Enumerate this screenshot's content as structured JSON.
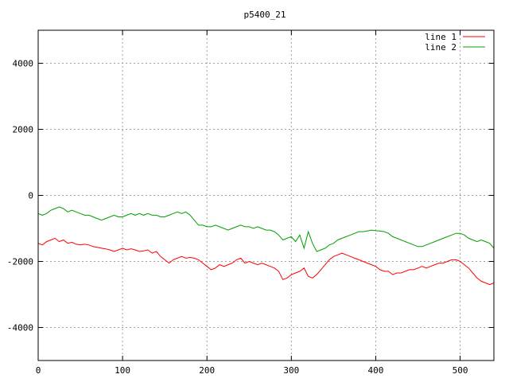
{
  "chart_data": {
    "type": "line",
    "title": "p5400_21",
    "xlabel": "",
    "ylabel": "",
    "xlim": [
      0,
      540
    ],
    "ylim": [
      -5000,
      5000
    ],
    "x_ticks": [
      0,
      100,
      200,
      300,
      400,
      500
    ],
    "y_ticks": [
      -4000,
      -2000,
      0,
      2000,
      4000
    ],
    "grid": true,
    "legend_position": "top-right",
    "series": [
      {
        "name": "line 1",
        "color": "#ff0000",
        "points": [
          [
            0,
            -1450
          ],
          [
            5,
            -1500
          ],
          [
            10,
            -1400
          ],
          [
            15,
            -1350
          ],
          [
            20,
            -1300
          ],
          [
            25,
            -1400
          ],
          [
            30,
            -1350
          ],
          [
            35,
            -1450
          ],
          [
            40,
            -1420
          ],
          [
            45,
            -1480
          ],
          [
            50,
            -1500
          ],
          [
            55,
            -1480
          ],
          [
            60,
            -1500
          ],
          [
            65,
            -1550
          ],
          [
            70,
            -1570
          ],
          [
            75,
            -1600
          ],
          [
            80,
            -1620
          ],
          [
            85,
            -1650
          ],
          [
            90,
            -1700
          ],
          [
            95,
            -1650
          ],
          [
            100,
            -1600
          ],
          [
            105,
            -1650
          ],
          [
            110,
            -1620
          ],
          [
            115,
            -1650
          ],
          [
            120,
            -1700
          ],
          [
            125,
            -1680
          ],
          [
            130,
            -1650
          ],
          [
            135,
            -1750
          ],
          [
            140,
            -1700
          ],
          [
            145,
            -1850
          ],
          [
            150,
            -1950
          ],
          [
            155,
            -2050
          ],
          [
            160,
            -1950
          ],
          [
            165,
            -1900
          ],
          [
            170,
            -1850
          ],
          [
            175,
            -1900
          ],
          [
            180,
            -1880
          ],
          [
            185,
            -1900
          ],
          [
            190,
            -1950
          ],
          [
            195,
            -2050
          ],
          [
            200,
            -2150
          ],
          [
            205,
            -2250
          ],
          [
            210,
            -2200
          ],
          [
            215,
            -2100
          ],
          [
            220,
            -2150
          ],
          [
            225,
            -2100
          ],
          [
            230,
            -2050
          ],
          [
            235,
            -1950
          ],
          [
            240,
            -1900
          ],
          [
            245,
            -2050
          ],
          [
            250,
            -2000
          ],
          [
            255,
            -2050
          ],
          [
            260,
            -2100
          ],
          [
            265,
            -2050
          ],
          [
            270,
            -2100
          ],
          [
            275,
            -2150
          ],
          [
            280,
            -2200
          ],
          [
            285,
            -2300
          ],
          [
            290,
            -2550
          ],
          [
            295,
            -2500
          ],
          [
            300,
            -2400
          ],
          [
            305,
            -2350
          ],
          [
            310,
            -2300
          ],
          [
            315,
            -2200
          ],
          [
            320,
            -2450
          ],
          [
            325,
            -2500
          ],
          [
            330,
            -2400
          ],
          [
            335,
            -2250
          ],
          [
            340,
            -2100
          ],
          [
            345,
            -1950
          ],
          [
            350,
            -1850
          ],
          [
            355,
            -1800
          ],
          [
            360,
            -1750
          ],
          [
            365,
            -1800
          ],
          [
            370,
            -1850
          ],
          [
            375,
            -1900
          ],
          [
            380,
            -1950
          ],
          [
            385,
            -2000
          ],
          [
            390,
            -2050
          ],
          [
            395,
            -2100
          ],
          [
            400,
            -2150
          ],
          [
            405,
            -2250
          ],
          [
            410,
            -2300
          ],
          [
            415,
            -2300
          ],
          [
            420,
            -2400
          ],
          [
            425,
            -2350
          ],
          [
            430,
            -2350
          ],
          [
            435,
            -2300
          ],
          [
            440,
            -2250
          ],
          [
            445,
            -2250
          ],
          [
            450,
            -2200
          ],
          [
            455,
            -2150
          ],
          [
            460,
            -2200
          ],
          [
            465,
            -2150
          ],
          [
            470,
            -2100
          ],
          [
            475,
            -2050
          ],
          [
            480,
            -2050
          ],
          [
            485,
            -2000
          ],
          [
            490,
            -1950
          ],
          [
            495,
            -1950
          ],
          [
            500,
            -2000
          ],
          [
            505,
            -2100
          ],
          [
            510,
            -2200
          ],
          [
            515,
            -2350
          ],
          [
            520,
            -2500
          ],
          [
            525,
            -2600
          ],
          [
            530,
            -2650
          ],
          [
            535,
            -2700
          ],
          [
            540,
            -2650
          ]
        ]
      },
      {
        "name": "line 2",
        "color": "#00a000",
        "points": [
          [
            0,
            -550
          ],
          [
            5,
            -600
          ],
          [
            10,
            -550
          ],
          [
            15,
            -450
          ],
          [
            20,
            -400
          ],
          [
            25,
            -350
          ],
          [
            30,
            -400
          ],
          [
            35,
            -500
          ],
          [
            40,
            -450
          ],
          [
            45,
            -500
          ],
          [
            50,
            -550
          ],
          [
            55,
            -600
          ],
          [
            60,
            -600
          ],
          [
            65,
            -650
          ],
          [
            70,
            -700
          ],
          [
            75,
            -750
          ],
          [
            80,
            -700
          ],
          [
            85,
            -650
          ],
          [
            90,
            -600
          ],
          [
            95,
            -650
          ],
          [
            100,
            -650
          ],
          [
            105,
            -600
          ],
          [
            110,
            -550
          ],
          [
            115,
            -600
          ],
          [
            120,
            -550
          ],
          [
            125,
            -600
          ],
          [
            130,
            -550
          ],
          [
            135,
            -600
          ],
          [
            140,
            -600
          ],
          [
            145,
            -650
          ],
          [
            150,
            -650
          ],
          [
            155,
            -600
          ],
          [
            160,
            -550
          ],
          [
            165,
            -500
          ],
          [
            170,
            -550
          ],
          [
            175,
            -500
          ],
          [
            180,
            -600
          ],
          [
            185,
            -750
          ],
          [
            190,
            -900
          ],
          [
            195,
            -900
          ],
          [
            200,
            -950
          ],
          [
            205,
            -950
          ],
          [
            210,
            -900
          ],
          [
            215,
            -950
          ],
          [
            220,
            -1000
          ],
          [
            225,
            -1050
          ],
          [
            230,
            -1000
          ],
          [
            235,
            -950
          ],
          [
            240,
            -900
          ],
          [
            245,
            -950
          ],
          [
            250,
            -950
          ],
          [
            255,
            -1000
          ],
          [
            260,
            -950
          ],
          [
            265,
            -1000
          ],
          [
            270,
            -1050
          ],
          [
            275,
            -1050
          ],
          [
            280,
            -1100
          ],
          [
            285,
            -1200
          ],
          [
            290,
            -1350
          ],
          [
            295,
            -1300
          ],
          [
            300,
            -1250
          ],
          [
            305,
            -1400
          ],
          [
            310,
            -1200
          ],
          [
            315,
            -1600
          ],
          [
            320,
            -1100
          ],
          [
            325,
            -1450
          ],
          [
            330,
            -1700
          ],
          [
            335,
            -1650
          ],
          [
            340,
            -1600
          ],
          [
            345,
            -1500
          ],
          [
            350,
            -1450
          ],
          [
            355,
            -1350
          ],
          [
            360,
            -1300
          ],
          [
            365,
            -1250
          ],
          [
            370,
            -1200
          ],
          [
            375,
            -1150
          ],
          [
            380,
            -1100
          ],
          [
            385,
            -1100
          ],
          [
            390,
            -1080
          ],
          [
            395,
            -1050
          ],
          [
            400,
            -1070
          ],
          [
            405,
            -1080
          ],
          [
            410,
            -1100
          ],
          [
            415,
            -1150
          ],
          [
            420,
            -1250
          ],
          [
            425,
            -1300
          ],
          [
            430,
            -1350
          ],
          [
            435,
            -1400
          ],
          [
            440,
            -1450
          ],
          [
            445,
            -1500
          ],
          [
            450,
            -1550
          ],
          [
            455,
            -1550
          ],
          [
            460,
            -1500
          ],
          [
            465,
            -1450
          ],
          [
            470,
            -1400
          ],
          [
            475,
            -1350
          ],
          [
            480,
            -1300
          ],
          [
            485,
            -1250
          ],
          [
            490,
            -1200
          ],
          [
            495,
            -1150
          ],
          [
            500,
            -1150
          ],
          [
            505,
            -1200
          ],
          [
            510,
            -1300
          ],
          [
            515,
            -1350
          ],
          [
            520,
            -1400
          ],
          [
            525,
            -1350
          ],
          [
            530,
            -1400
          ],
          [
            535,
            -1450
          ],
          [
            540,
            -1600
          ]
        ]
      }
    ]
  }
}
